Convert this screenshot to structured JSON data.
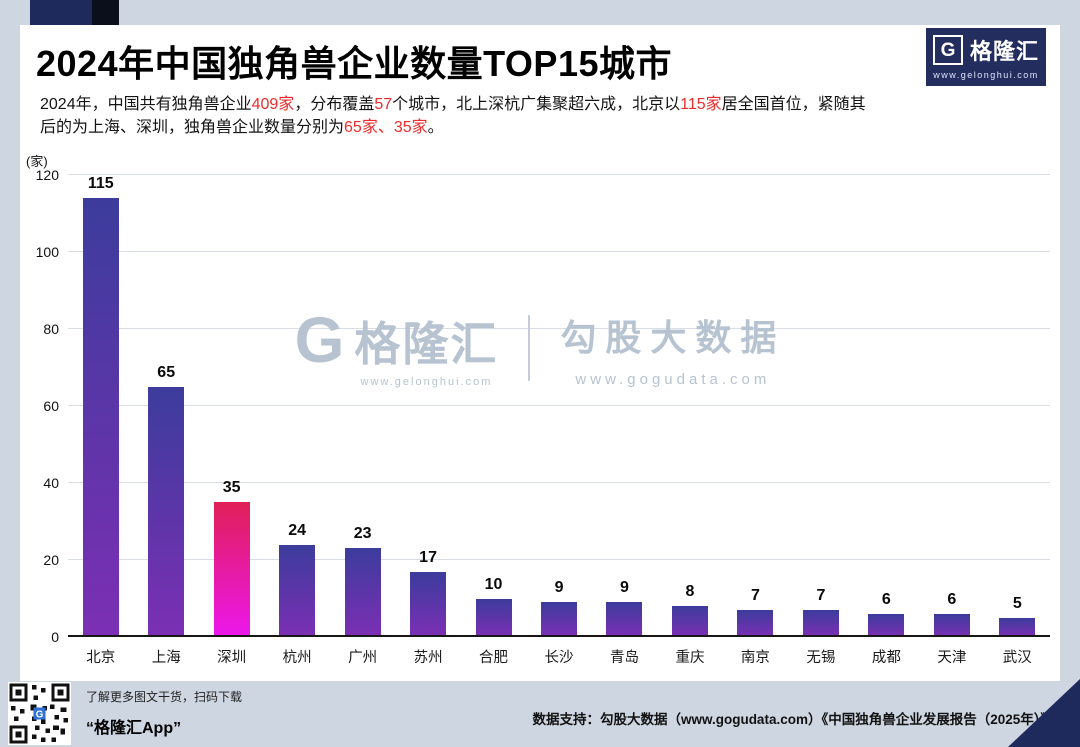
{
  "header": {
    "title": "2024年中国独角兽企业数量TOP15城市",
    "subtitle_parts": [
      {
        "text": "2024年，中国共有独角兽企业",
        "red": false
      },
      {
        "text": "409家",
        "red": true
      },
      {
        "text": "，分布覆盖",
        "red": false
      },
      {
        "text": "57",
        "red": true
      },
      {
        "text": "个城市，北上深杭广集聚超六成，北京以",
        "red": false
      },
      {
        "text": "115家",
        "red": true
      },
      {
        "text": "居全国首位，紧随其后的为上海、深圳，独角兽企业数量分别为",
        "red": false
      },
      {
        "text": "65家、35家",
        "red": true
      },
      {
        "text": "。",
        "red": false
      }
    ]
  },
  "logo": {
    "glyph": "G",
    "brand": "格隆汇",
    "url": "www.gelonghui.com"
  },
  "watermark": {
    "glyph": "G",
    "brand": "格隆汇",
    "brand_url": "www.gelonghui.com",
    "partner": "勾股大数据",
    "partner_url": "www.gogudata.com"
  },
  "chart_data": {
    "type": "bar",
    "title": "2024年中国独角兽企业数量TOP15城市",
    "unit_label": "(家)",
    "categories": [
      "北京",
      "上海",
      "深圳",
      "杭州",
      "广州",
      "苏州",
      "合肥",
      "长沙",
      "青岛",
      "重庆",
      "南京",
      "无锡",
      "成都",
      "天津",
      "武汉"
    ],
    "values": [
      115,
      65,
      35,
      24,
      23,
      17,
      10,
      9,
      9,
      8,
      7,
      7,
      6,
      6,
      5
    ],
    "highlight_index": 2,
    "ylim": [
      0,
      120
    ],
    "yticks": [
      0,
      20,
      40,
      60,
      80,
      100,
      120
    ],
    "grid": true,
    "legend": "none",
    "bar_gradient_top": "#3c3c9c",
    "bar_gradient_bottom": "#7c2fb4",
    "highlight_gradient_top": "#e02057",
    "highlight_gradient_bottom": "#ec17ec"
  },
  "footer": {
    "qr_text_line1": "了解更多图文干货，扫码下载",
    "qr_text_line2": "“格隆汇App”",
    "credit": "数据支持：勾股大数据（www.gogudata.com）《中国独角兽企业发展报告（2025年）》"
  }
}
